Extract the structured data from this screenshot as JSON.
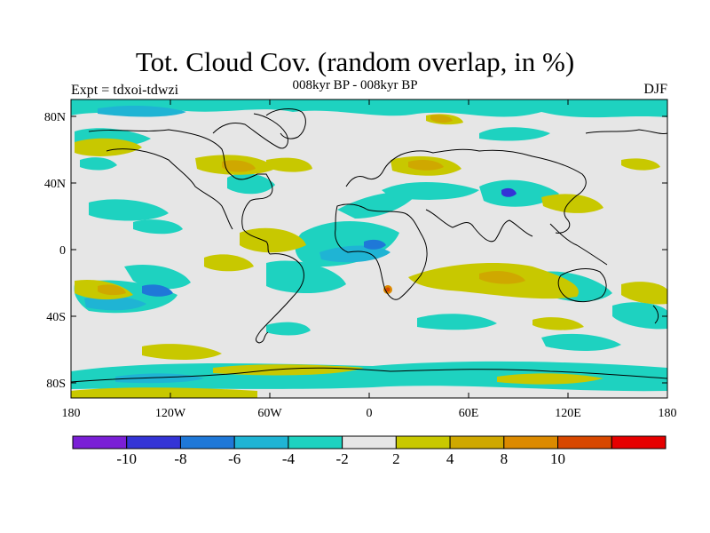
{
  "title": "Tot. Cloud Cov. (random overlap, in %)",
  "subtitle": "008kyr BP - 008kyr BP",
  "expt_label": "Expt = tdxoi-tdwzi",
  "season": "DJF",
  "lat_ticks": [
    "80N",
    "40N",
    "0",
    "40S",
    "80S"
  ],
  "lon_ticks": [
    "180",
    "120W",
    "60W",
    "0",
    "60E",
    "120E",
    "180"
  ],
  "colorbar": {
    "colors": [
      "#7a1fd6",
      "#3434d6",
      "#1f78d8",
      "#1fb4d4",
      "#1ed2c0",
      "#e6e6e6",
      "#c8c800",
      "#cfa800",
      "#dc8a00",
      "#d84800",
      "#e60000"
    ],
    "labels": [
      "-10",
      "-8",
      "-6",
      "-4",
      "-2",
      "2",
      "4",
      "8",
      "10"
    ]
  },
  "colors": {
    "background_field": "#e6e6e6",
    "coast": "#000000"
  }
}
